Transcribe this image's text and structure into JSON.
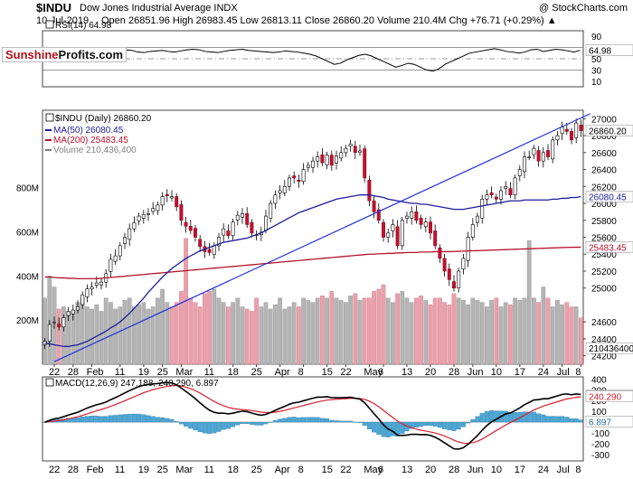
{
  "header": {
    "symbol": "$INDU",
    "name": "Dow Jones Industrial Average INDX",
    "credit": "@ StockCharts.com",
    "date": "10-Jul-2019",
    "ohlc": "Open 26851.96  High 26983.45  Low 26813.11  Close 26860.20  Volume 210.4M  Chg +76.71 (+0.29%) ▲"
  },
  "logo": {
    "part1": "Sunshine",
    "part2": "Profits.com"
  },
  "chart_data": [
    {
      "type": "line",
      "title": "RSI(14) 64.98",
      "ylim": [
        0,
        100
      ],
      "ticks": [
        10,
        30,
        50,
        70,
        90
      ],
      "reference_lines": [
        30,
        50,
        70
      ],
      "last_value": 64.98,
      "last_label": "64.98",
      "values": [
        58,
        60,
        62,
        64,
        62,
        60,
        61,
        63,
        64,
        62,
        61,
        62,
        64,
        66,
        65,
        62,
        61,
        63,
        64,
        65,
        63,
        62,
        64,
        66,
        67,
        66,
        63,
        62,
        61,
        63,
        65,
        66,
        67,
        65,
        64,
        63,
        62,
        61,
        62,
        64,
        63,
        62,
        60,
        58,
        55,
        50,
        45,
        40,
        42,
        48,
        52,
        56,
        58,
        55,
        50,
        45,
        40,
        35,
        38,
        42,
        40,
        35,
        30,
        28,
        32,
        40,
        45,
        50,
        55,
        60,
        62,
        64,
        66,
        68,
        66,
        63,
        62,
        60,
        62,
        66,
        67,
        63,
        65,
        67,
        66,
        64,
        62,
        65
      ]
    },
    {
      "type": "candlestick",
      "title": "$INDU (Daily) 26860.20",
      "legend": [
        {
          "label": "MA(50) 26080.45",
          "color": "#1c1c9c"
        },
        {
          "label": "MA(200) 25483.45",
          "color": "#b3122b"
        },
        {
          "label": "Volume 210,436,400",
          "color": "#808080"
        }
      ],
      "ylim": [
        24100,
        27100
      ],
      "price_ticks": [
        24200,
        24400,
        24600,
        25000,
        25200,
        25400,
        25600,
        25800,
        26000,
        26200,
        26400,
        26600,
        26800,
        27000
      ],
      "tags": [
        {
          "label": "26860.20",
          "value": 26860.2,
          "kind": "close"
        },
        {
          "label": "26080.45",
          "value": 26080.45,
          "kind": "ma50"
        },
        {
          "label": "25483.45",
          "value": 25483.45,
          "kind": "ma200"
        },
        {
          "label": "210436400",
          "value": 24290,
          "kind": "volume"
        }
      ],
      "volume_ticks": [
        {
          "label": "800M",
          "value": 800
        },
        {
          "label": "600M",
          "value": 600
        },
        {
          "label": "400M",
          "value": 400
        },
        {
          "label": "200M",
          "value": 200
        }
      ],
      "volume_ymax": 1150,
      "x_labels": [
        {
          "label": "22",
          "i": 2
        },
        {
          "label": "28",
          "i": 6
        },
        {
          "label": "Feb",
          "i": 10
        },
        {
          "label": "11",
          "i": 16
        },
        {
          "label": "19",
          "i": 21
        },
        {
          "label": "25",
          "i": 25
        },
        {
          "label": "Mar",
          "i": 29
        },
        {
          "label": "11",
          "i": 35
        },
        {
          "label": "18",
          "i": 40
        },
        {
          "label": "25",
          "i": 45
        },
        {
          "label": "Apr",
          "i": 50
        },
        {
          "label": "8",
          "i": 55
        },
        {
          "label": "15",
          "i": 60
        },
        {
          "label": "22",
          "i": 64
        },
        {
          "label": "May",
          "i": 69
        },
        {
          "label": "6",
          "i": 72
        },
        {
          "label": "13",
          "i": 77
        },
        {
          "label": "20",
          "i": 82
        },
        {
          "label": "28",
          "i": 87
        },
        {
          "label": "Jun",
          "i": 91
        },
        {
          "label": "10",
          "i": 96
        },
        {
          "label": "17",
          "i": 101
        },
        {
          "label": "24",
          "i": 106
        },
        {
          "label": "Jul",
          "i": 110
        },
        {
          "label": "8",
          "i": 114
        }
      ],
      "trendline": {
        "from": [
          2,
          24130
        ],
        "to": [
          116,
          27060
        ]
      },
      "closes": [
        24370,
        24570,
        24600,
        24540,
        24650,
        24720,
        24740,
        24780,
        24920,
        24990,
        25010,
        25060,
        25070,
        25170,
        25340,
        25380,
        25500,
        25600,
        25700,
        25770,
        25850,
        25870,
        25880,
        25940,
        25980,
        26080,
        26090,
        26080,
        25960,
        25800,
        25730,
        25680,
        25600,
        25490,
        25430,
        25420,
        25500,
        25600,
        25700,
        25620,
        25780,
        25860,
        25880,
        25750,
        25650,
        25630,
        25660,
        25850,
        26000,
        26100,
        26150,
        26200,
        26300,
        26300,
        26260,
        26400,
        26450,
        26500,
        26550,
        26480,
        26570,
        26450,
        26560,
        26600,
        26650,
        26700,
        26600,
        26620,
        26300,
        26030,
        25900,
        25800,
        25600,
        25650,
        25750,
        25500,
        25800,
        25850,
        25900,
        25800,
        25750,
        25780,
        25650,
        25500,
        25350,
        25200,
        25100,
        25000,
        25200,
        25350,
        25600,
        25750,
        25850,
        26050,
        26100,
        26100,
        26050,
        26150,
        26200,
        26100,
        26300,
        26400,
        26550,
        26550,
        26650,
        26500,
        26600,
        26550,
        26750,
        26800,
        26900,
        26850,
        26750,
        26950,
        26860
      ],
      "ma50": [
        24350,
        24340,
        24330,
        24320,
        24310,
        24310,
        24320,
        24330,
        24350,
        24370,
        24400,
        24430,
        24460,
        24490,
        24530,
        24560,
        24600,
        24650,
        24700,
        24760,
        24820,
        24880,
        24950,
        25010,
        25070,
        25130,
        25180,
        25230,
        25270,
        25310,
        25350,
        25380,
        25410,
        25440,
        25460,
        25480,
        25500,
        25520,
        25540,
        25550,
        25560,
        25570,
        25580,
        25590,
        25610,
        25630,
        25650,
        25680,
        25710,
        25740,
        25770,
        25800,
        25830,
        25860,
        25890,
        25910,
        25930,
        25950,
        25970,
        25990,
        26010,
        26030,
        26050,
        26060,
        26070,
        26080,
        26090,
        26100,
        26100,
        26100,
        26090,
        26080,
        26070,
        26050,
        26040,
        26030,
        26020,
        26010,
        26000,
        26000,
        25990,
        25990,
        25980,
        25970,
        25960,
        25950,
        25940,
        25930,
        25930,
        25930,
        25940,
        25950,
        25960,
        25970,
        25980,
        25990,
        26000,
        26010,
        26020,
        26030,
        26030,
        26030,
        26040,
        26040,
        26040,
        26040,
        26040,
        26040,
        26050,
        26050,
        26060,
        26060,
        26070,
        26070,
        26080
      ],
      "ma200": [
        25130,
        25130,
        25125,
        25120,
        25120,
        25115,
        25115,
        25110,
        25110,
        25110,
        25110,
        25110,
        25115,
        25120,
        25125,
        25130,
        25135,
        25140,
        25145,
        25150,
        25155,
        25160,
        25165,
        25170,
        25175,
        25180,
        25185,
        25190,
        25195,
        25200,
        25205,
        25210,
        25215,
        25220,
        25225,
        25230,
        25235,
        25240,
        25245,
        25250,
        25255,
        25260,
        25265,
        25270,
        25275,
        25280,
        25285,
        25290,
        25295,
        25300,
        25305,
        25310,
        25315,
        25320,
        25325,
        25330,
        25335,
        25340,
        25345,
        25350,
        25355,
        25360,
        25365,
        25370,
        25375,
        25380,
        25385,
        25390,
        25395,
        25400,
        25400,
        25405,
        25405,
        25410,
        25410,
        25415,
        25415,
        25420,
        25420,
        25420,
        25425,
        25425,
        25425,
        25430,
        25430,
        25430,
        25430,
        25432,
        25434,
        25436,
        25438,
        25440,
        25442,
        25444,
        25446,
        25448,
        25450,
        25452,
        25454,
        25456,
        25458,
        25460,
        25462,
        25464,
        25466,
        25468,
        25470,
        25472,
        25474,
        25476,
        25478,
        25480,
        25481,
        25482,
        25483
      ],
      "volumes": [
        300,
        400,
        350,
        250,
        260,
        240,
        240,
        280,
        300,
        260,
        250,
        270,
        240,
        300,
        280,
        250,
        260,
        290,
        300,
        260,
        270,
        280,
        250,
        260,
        300,
        340,
        280,
        260,
        280,
        330,
        570,
        300,
        280,
        260,
        320,
        330,
        340,
        300,
        280,
        260,
        280,
        300,
        260,
        250,
        240,
        300,
        260,
        280,
        250,
        270,
        300,
        250,
        260,
        280,
        260,
        300,
        290,
        280,
        300,
        310,
        300,
        330,
        300,
        290,
        280,
        310,
        320,
        290,
        300,
        300,
        330,
        340,
        360,
        300,
        280,
        320,
        330,
        300,
        280,
        300,
        310,
        290,
        270,
        300,
        300,
        280,
        270,
        320,
        300,
        290,
        270,
        300,
        290,
        280,
        260,
        290,
        300,
        260,
        280,
        270,
        300,
        290,
        300,
        560,
        300,
        280,
        350,
        300,
        260,
        290,
        270,
        280,
        260,
        260,
        210
      ]
    },
    {
      "type": "line",
      "title": "MACD(12,26,9) 247.188, 240.290, 6.897",
      "ylim": [
        -360,
        420
      ],
      "ticks": [
        -300,
        -200,
        -100,
        100,
        200,
        300,
        400
      ],
      "tags": [
        {
          "label": "247.188",
          "value": 247.188,
          "kind": "macd"
        },
        {
          "label": "240.290",
          "value": 240.29,
          "kind": "signal"
        },
        {
          "label": "6.897",
          "value": 6.897,
          "kind": "histogram"
        }
      ]
    }
  ]
}
